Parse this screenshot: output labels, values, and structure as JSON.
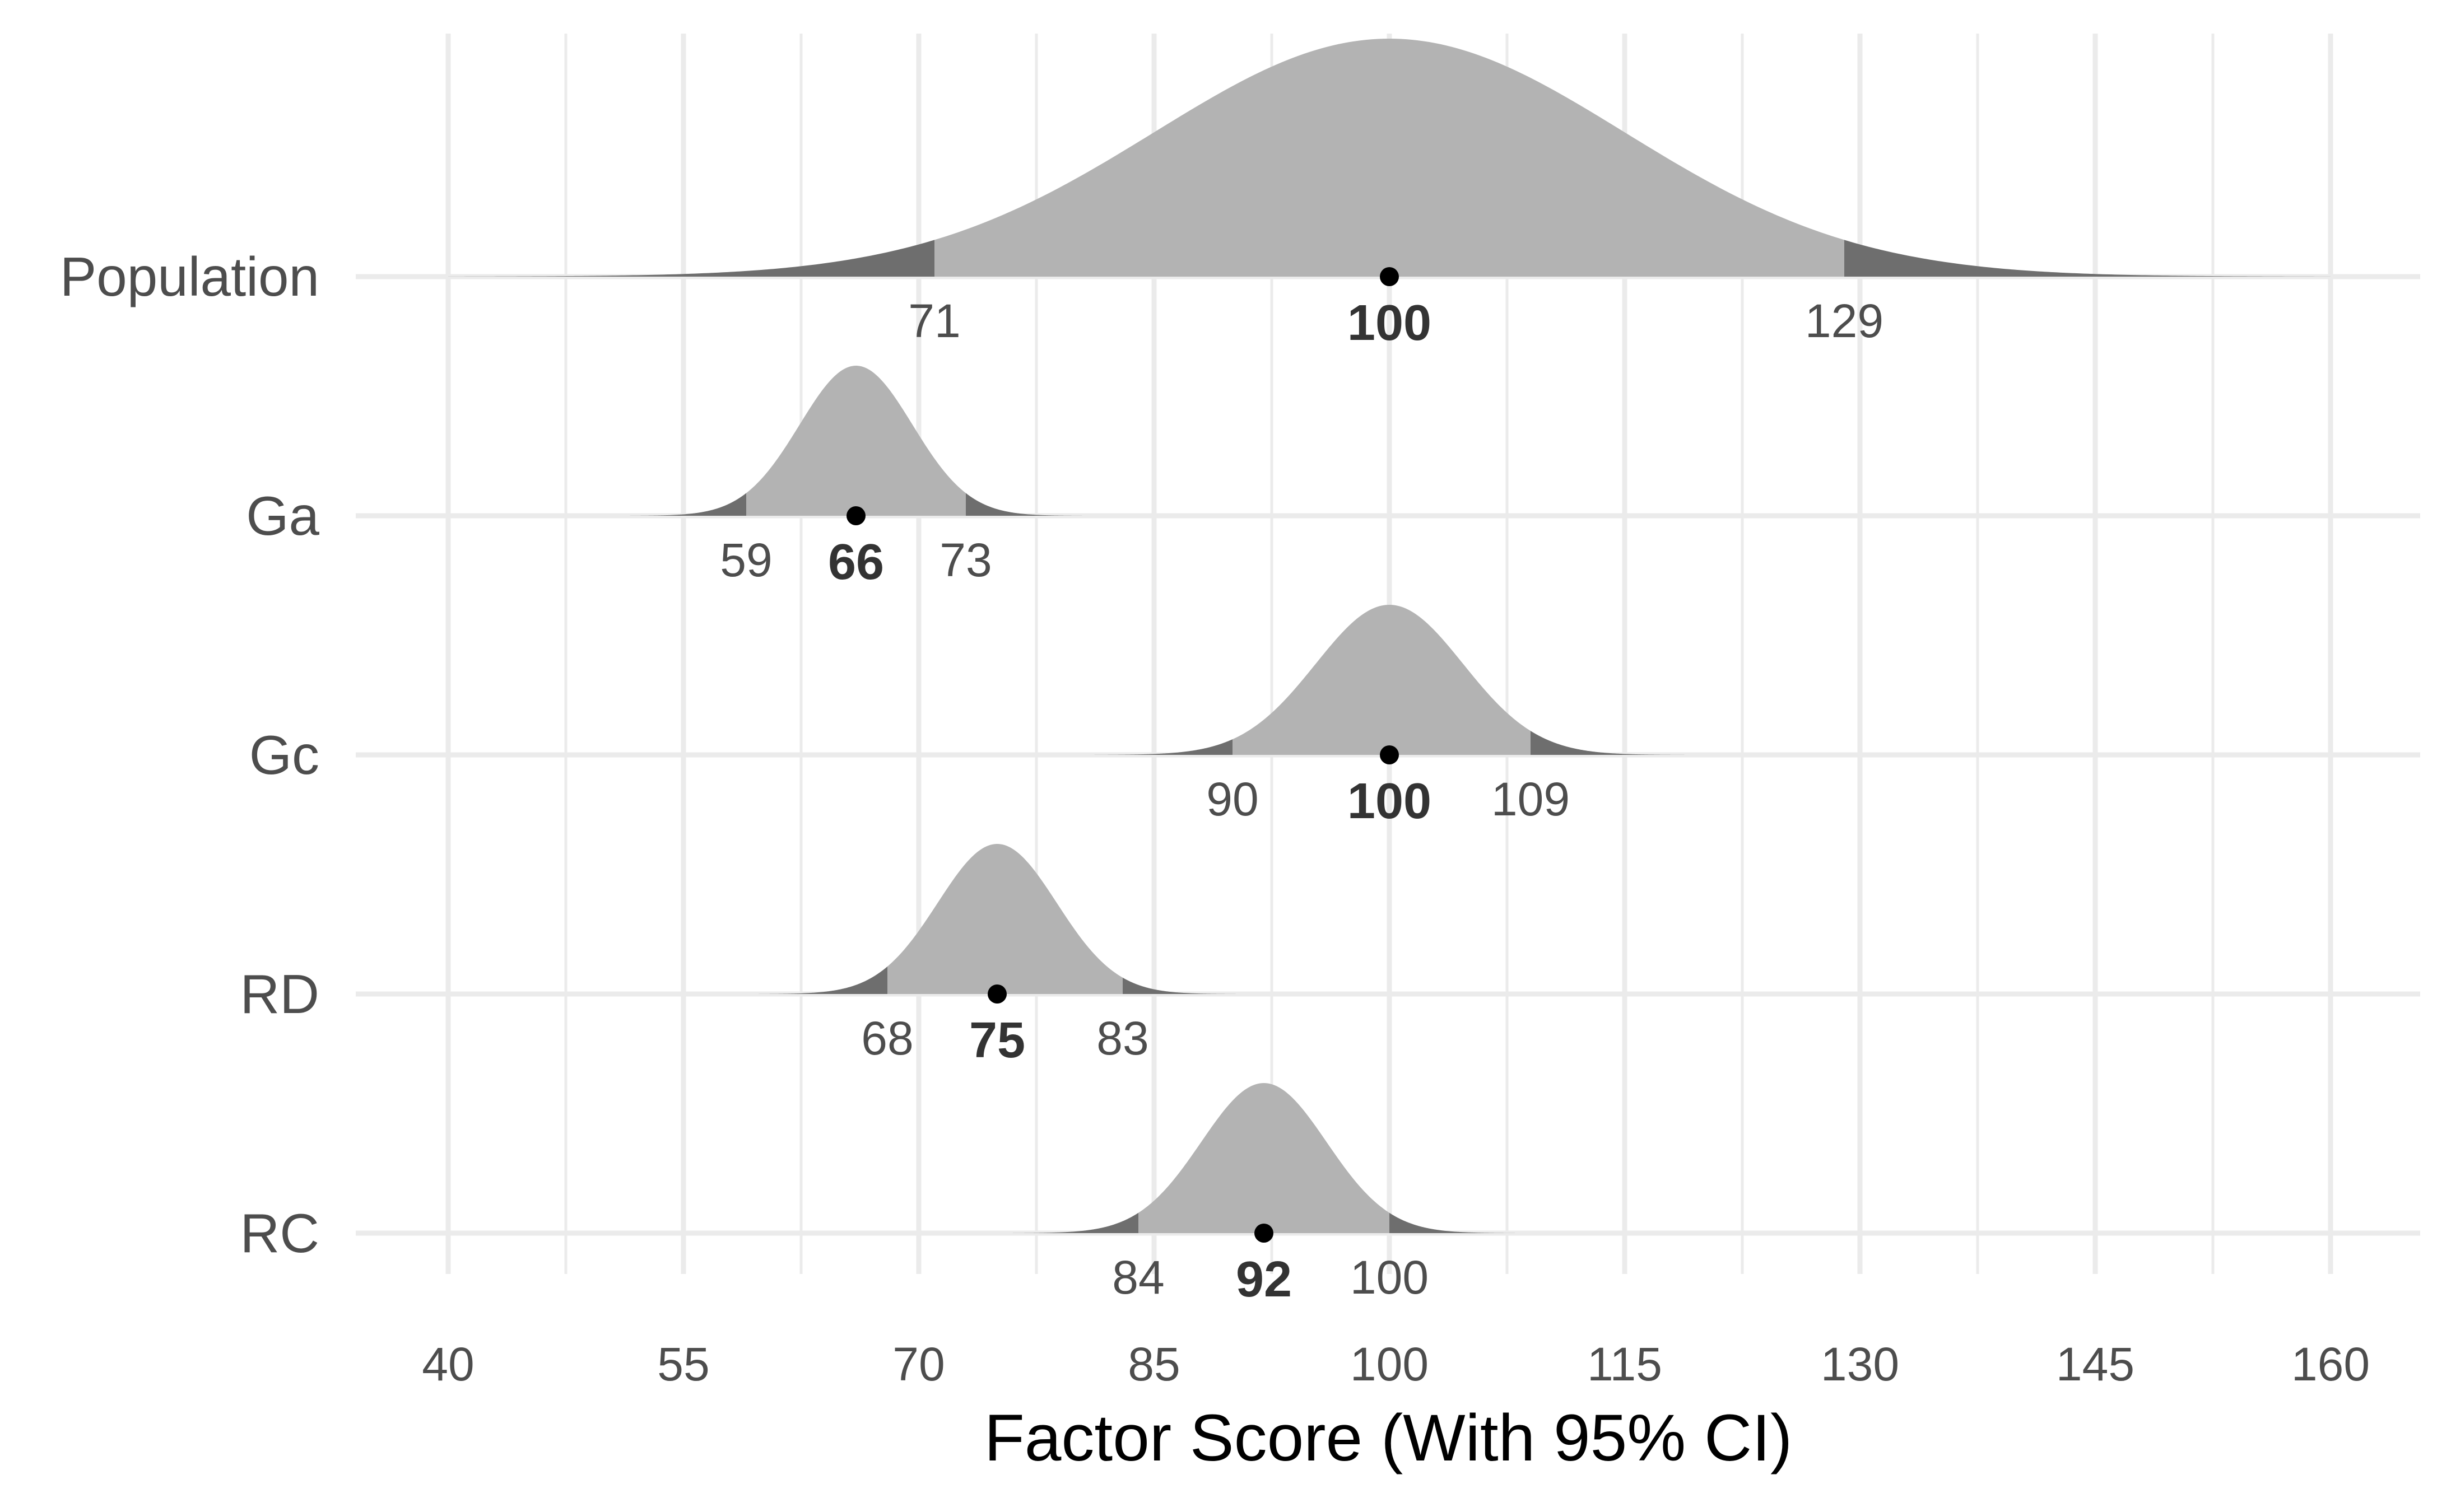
{
  "chart_data": {
    "type": "ridgeline",
    "xlabel": "Factor Score (With 95% CI)",
    "xlim": [
      40,
      160
    ],
    "xticks": [
      40,
      55,
      70,
      85,
      100,
      115,
      130,
      145,
      160
    ],
    "grid": true,
    "colors": {
      "density": "#b3b3b3",
      "tail": "#6e6e6e",
      "point": "#000000",
      "grid": "#ebebeb"
    },
    "series": [
      {
        "name": "Population",
        "score": 100,
        "ci_lower": 71,
        "ci_upper": 129,
        "sd": 15
      },
      {
        "name": "Ga",
        "score": 66,
        "ci_lower": 59,
        "ci_upper": 73,
        "sd": 3.6
      },
      {
        "name": "Gc",
        "score": 100,
        "ci_lower": 90,
        "ci_upper": 109,
        "sd": 4.7
      },
      {
        "name": "RD",
        "score": 75,
        "ci_lower": 68,
        "ci_upper": 83,
        "sd": 3.8
      },
      {
        "name": "RC",
        "score": 92,
        "ci_lower": 84,
        "ci_upper": 100,
        "sd": 4.0
      }
    ]
  }
}
